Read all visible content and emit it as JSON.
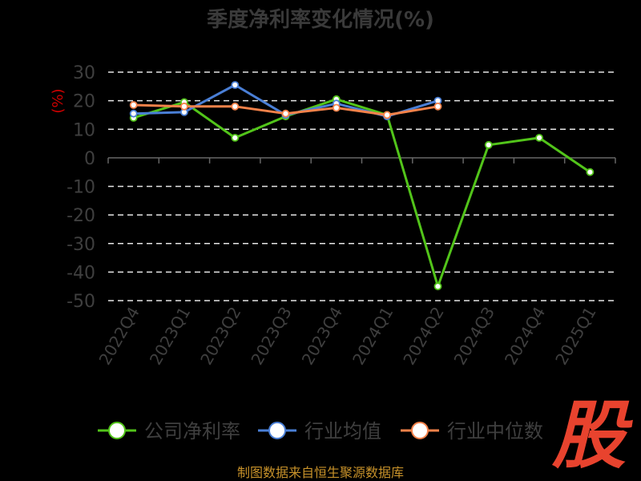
{
  "chart_data": {
    "type": "line",
    "title": "季度净利率变化情况(%)",
    "ylabel": "(%)",
    "xlabel": "",
    "categories": [
      "2022Q4",
      "2023Q1",
      "2023Q2",
      "2023Q3",
      "2023Q4",
      "2024Q1",
      "2024Q2",
      "2024Q3",
      "2024Q4",
      "2025Q1"
    ],
    "ylim": [
      -50,
      30
    ],
    "yticks": [
      30,
      20,
      10,
      0,
      -10,
      -20,
      -30,
      -40,
      -50
    ],
    "grid": true,
    "legend_position": "bottom",
    "series": [
      {
        "name": "公司净利率",
        "color": "#52c41a",
        "values": [
          14,
          19.5,
          7,
          14.5,
          20.5,
          15,
          -45,
          4.5,
          7,
          -5
        ]
      },
      {
        "name": "行业均值",
        "color": "#4a7fd6",
        "values": [
          15.5,
          16,
          25.5,
          15,
          19,
          14.5,
          20,
          null,
          null,
          null
        ]
      },
      {
        "name": "行业中位数",
        "color": "#f4824a",
        "values": [
          18.5,
          18,
          18,
          15.5,
          17.5,
          15,
          18,
          null,
          null,
          null
        ]
      }
    ]
  },
  "source": "制图数据来自恒生聚源数据库",
  "watermark": "股"
}
